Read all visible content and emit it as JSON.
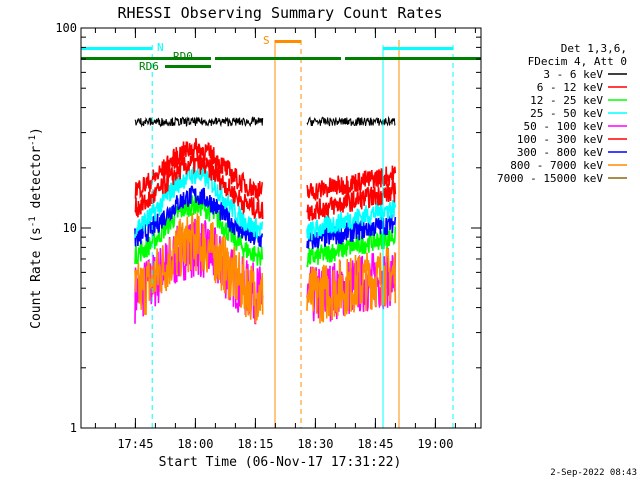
{
  "chart_data": {
    "type": "line",
    "title": "RHESSI Observing Summary Count Rates",
    "xlabel": "Start Time (06-Nov-17 17:31:22)",
    "ylabel_main": "Count Rate (s",
    "ylabel_sup1": "-1",
    "ylabel_mid": " detector",
    "ylabel_sup2": "-1",
    "ylabel_end": ")",
    "y_scale": "log",
    "ylim": [
      1,
      100
    ],
    "xlim_minutes": [
      0,
      100
    ],
    "x_ticks": [
      {
        "label": "17:45",
        "min": 13.6
      },
      {
        "label": "18:00",
        "min": 28.6
      },
      {
        "label": "18:15",
        "min": 43.6
      },
      {
        "label": "18:30",
        "min": 58.6
      },
      {
        "label": "18:45",
        "min": 73.6
      },
      {
        "label": "19:00",
        "min": 88.6
      }
    ],
    "y_ticks": [
      {
        "label": "1",
        "value": 1
      },
      {
        "label": "10",
        "value": 10
      },
      {
        "label": "100",
        "value": 100
      }
    ],
    "legend_header": [
      "Det 1,3,6,",
      "FDecim 4, Att 0"
    ],
    "legend_position": "right",
    "series": [
      {
        "name": "3 - 6 keV",
        "color": "#000000",
        "base": 34,
        "peak": 0
      },
      {
        "name": "6 - 12 keV",
        "color": "#ff0000",
        "base": 15,
        "peak": 10
      },
      {
        "name": "12 - 25 keV",
        "color": "#00ff00",
        "base": 7,
        "peak": 6
      },
      {
        "name": "25 - 50 keV",
        "color": "#00ffff",
        "base": 9.5,
        "peak": 9
      },
      {
        "name": "50 - 100 keV",
        "color": "#ff00ff",
        "base": 4.5,
        "peak": 3.5
      },
      {
        "name": "100 - 300 keV",
        "color": "#ff0000",
        "base": 12,
        "peak": 9
      },
      {
        "name": "300 - 800 keV",
        "color": "#0000ff",
        "base": 8.5,
        "peak": 6
      },
      {
        "name": "800 - 7000 keV",
        "color": "#ff8c00",
        "base": 4.5,
        "peak": 4
      },
      {
        "name": "7000 - 15000 keV",
        "color": "#8b6914",
        "base": 0,
        "peak": 0
      }
    ],
    "data_intervals_min": [
      [
        13.5,
        45.5
      ],
      [
        56.5,
        78.7
      ]
    ],
    "flags": {
      "N_label": "N",
      "S_label": "S",
      "RD0_label": "RD0",
      "RD6_label": "RD6",
      "N_segments": [
        [
          0,
          17.8
        ],
        [
          75.5,
          93
        ]
      ],
      "S_segments": [
        [
          48.5,
          55
        ]
      ],
      "RD0_segments": [
        [
          0,
          32.5
        ],
        [
          33.5,
          65
        ],
        [
          66,
          71.5
        ],
        [
          71.5,
          100
        ]
      ],
      "RD6_segments": [
        [
          21,
          32.5
        ]
      ],
      "cyan_lines_solid": [
        0,
        75.5
      ],
      "cyan_lines_dashed": [
        17.8,
        93
      ],
      "orange_lines_solid": [
        48.5,
        79.5
      ],
      "orange_lines_dashed": [
        55
      ]
    },
    "colors": {
      "N": "#00ffff",
      "S": "#ff8c00",
      "RD": "#008000",
      "axes": "#000000"
    }
  },
  "footer_timestamp": "2-Sep-2022 08:43"
}
